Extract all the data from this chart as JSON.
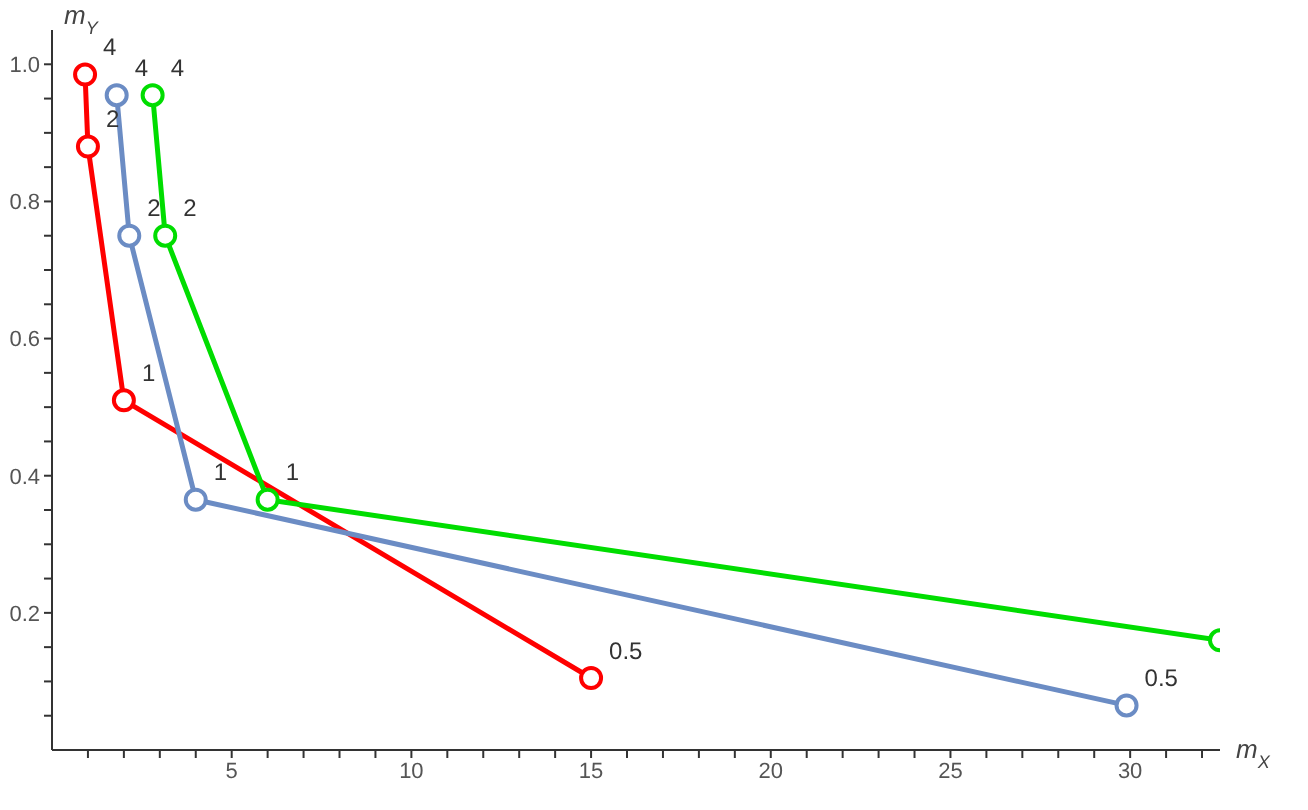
{
  "chart_data": {
    "type": "line",
    "xlabel": "m$_{X}$",
    "ylabel": "m$_{Y}$",
    "marker": "circle",
    "grid": false,
    "legend": false,
    "xlim": [
      0,
      32.5
    ],
    "xticks": [
      {
        "value": 1,
        "label": null
      },
      {
        "value": 2,
        "label": null
      },
      {
        "value": 3,
        "label": null
      },
      {
        "value": 4,
        "label": null
      },
      5,
      {
        "value": 6,
        "label": null
      },
      {
        "value": 7,
        "label": null
      },
      {
        "value": 8,
        "label": null
      },
      {
        "value": 9,
        "label": null
      },
      10,
      {
        "value": 11,
        "label": null
      },
      {
        "value": 12,
        "label": null
      },
      {
        "value": 13,
        "label": null
      },
      {
        "value": 14,
        "label": null
      },
      15,
      {
        "value": 16,
        "label": null
      },
      {
        "value": 17,
        "label": null
      },
      {
        "value": 18,
        "label": null
      },
      {
        "value": 19,
        "label": null
      },
      20,
      {
        "value": 21,
        "label": null
      },
      {
        "value": 22,
        "label": null
      },
      {
        "value": 23,
        "label": null
      },
      {
        "value": 24,
        "label": null
      },
      25,
      {
        "value": 26,
        "label": null
      },
      {
        "value": 27,
        "label": null
      },
      {
        "value": 28,
        "label": null
      },
      {
        "value": 29,
        "label": null
      },
      30,
      {
        "value": 31,
        "label": null
      },
      {
        "value": 32,
        "label": null
      }
    ],
    "ylim": [
      0,
      1.05
    ],
    "yticks": [
      {
        "value": 0.05,
        "label": null
      },
      {
        "value": 0.1,
        "label": null
      },
      {
        "value": 0.15,
        "label": null
      },
      0.2,
      {
        "value": 0.25,
        "label": null
      },
      {
        "value": 0.3,
        "label": null
      },
      {
        "value": 0.35,
        "label": null
      },
      {
        "value": 0.4,
        "label": "0.4"
      },
      {
        "value": 0.45,
        "label": null
      },
      {
        "value": 0.5,
        "label": null
      },
      {
        "value": 0.55,
        "label": null
      },
      {
        "value": 0.6,
        "label": "0.6"
      },
      {
        "value": 0.65,
        "label": null
      },
      {
        "value": 0.7,
        "label": null
      },
      {
        "value": 0.75,
        "label": null
      },
      {
        "value": 0.8,
        "label": "0.8"
      },
      {
        "value": 0.85,
        "label": null
      },
      {
        "value": 0.9,
        "label": null
      },
      {
        "value": 0.95,
        "label": null
      },
      {
        "value": 1,
        "label": "1.0"
      }
    ],
    "series": [
      {
        "color": "#ff0000",
        "x": [
          0.92,
          1.0,
          2.0,
          15.0
        ],
        "values": [
          0.985,
          0.88,
          0.51,
          0.105
        ]
      },
      {
        "color": "#6b8cc4",
        "x": [
          1.8,
          2.15,
          4.0,
          29.9
        ],
        "values": [
          0.955,
          0.75,
          0.365,
          0.065
        ]
      },
      {
        "color": "#00dd00",
        "x": [
          2.8,
          3.15,
          6.0,
          32.5
        ],
        "values": [
          0.955,
          0.75,
          0.365,
          0.16
        ]
      }
    ],
    "annotations": [
      {
        "text": "4",
        "x": 0.92,
        "y": 0.985
      },
      {
        "text": "2",
        "x": 1.0,
        "y": 0.88
      },
      {
        "text": "1",
        "x": 2.0,
        "y": 0.51
      },
      {
        "text": "0.5",
        "x": 15.0,
        "y": 0.105
      },
      {
        "text": "4",
        "x": 1.8,
        "y": 0.955
      },
      {
        "text": "2",
        "x": 2.15,
        "y": 0.75
      },
      {
        "text": "1",
        "x": 4.0,
        "y": 0.365
      },
      {
        "text": "0.5",
        "x": 29.9,
        "y": 0.065
      },
      {
        "text": "4",
        "x": 2.8,
        "y": 0.955
      },
      {
        "text": "2",
        "x": 3.15,
        "y": 0.75
      },
      {
        "text": "1",
        "x": 6.0,
        "y": 0.365
      }
    ]
  }
}
